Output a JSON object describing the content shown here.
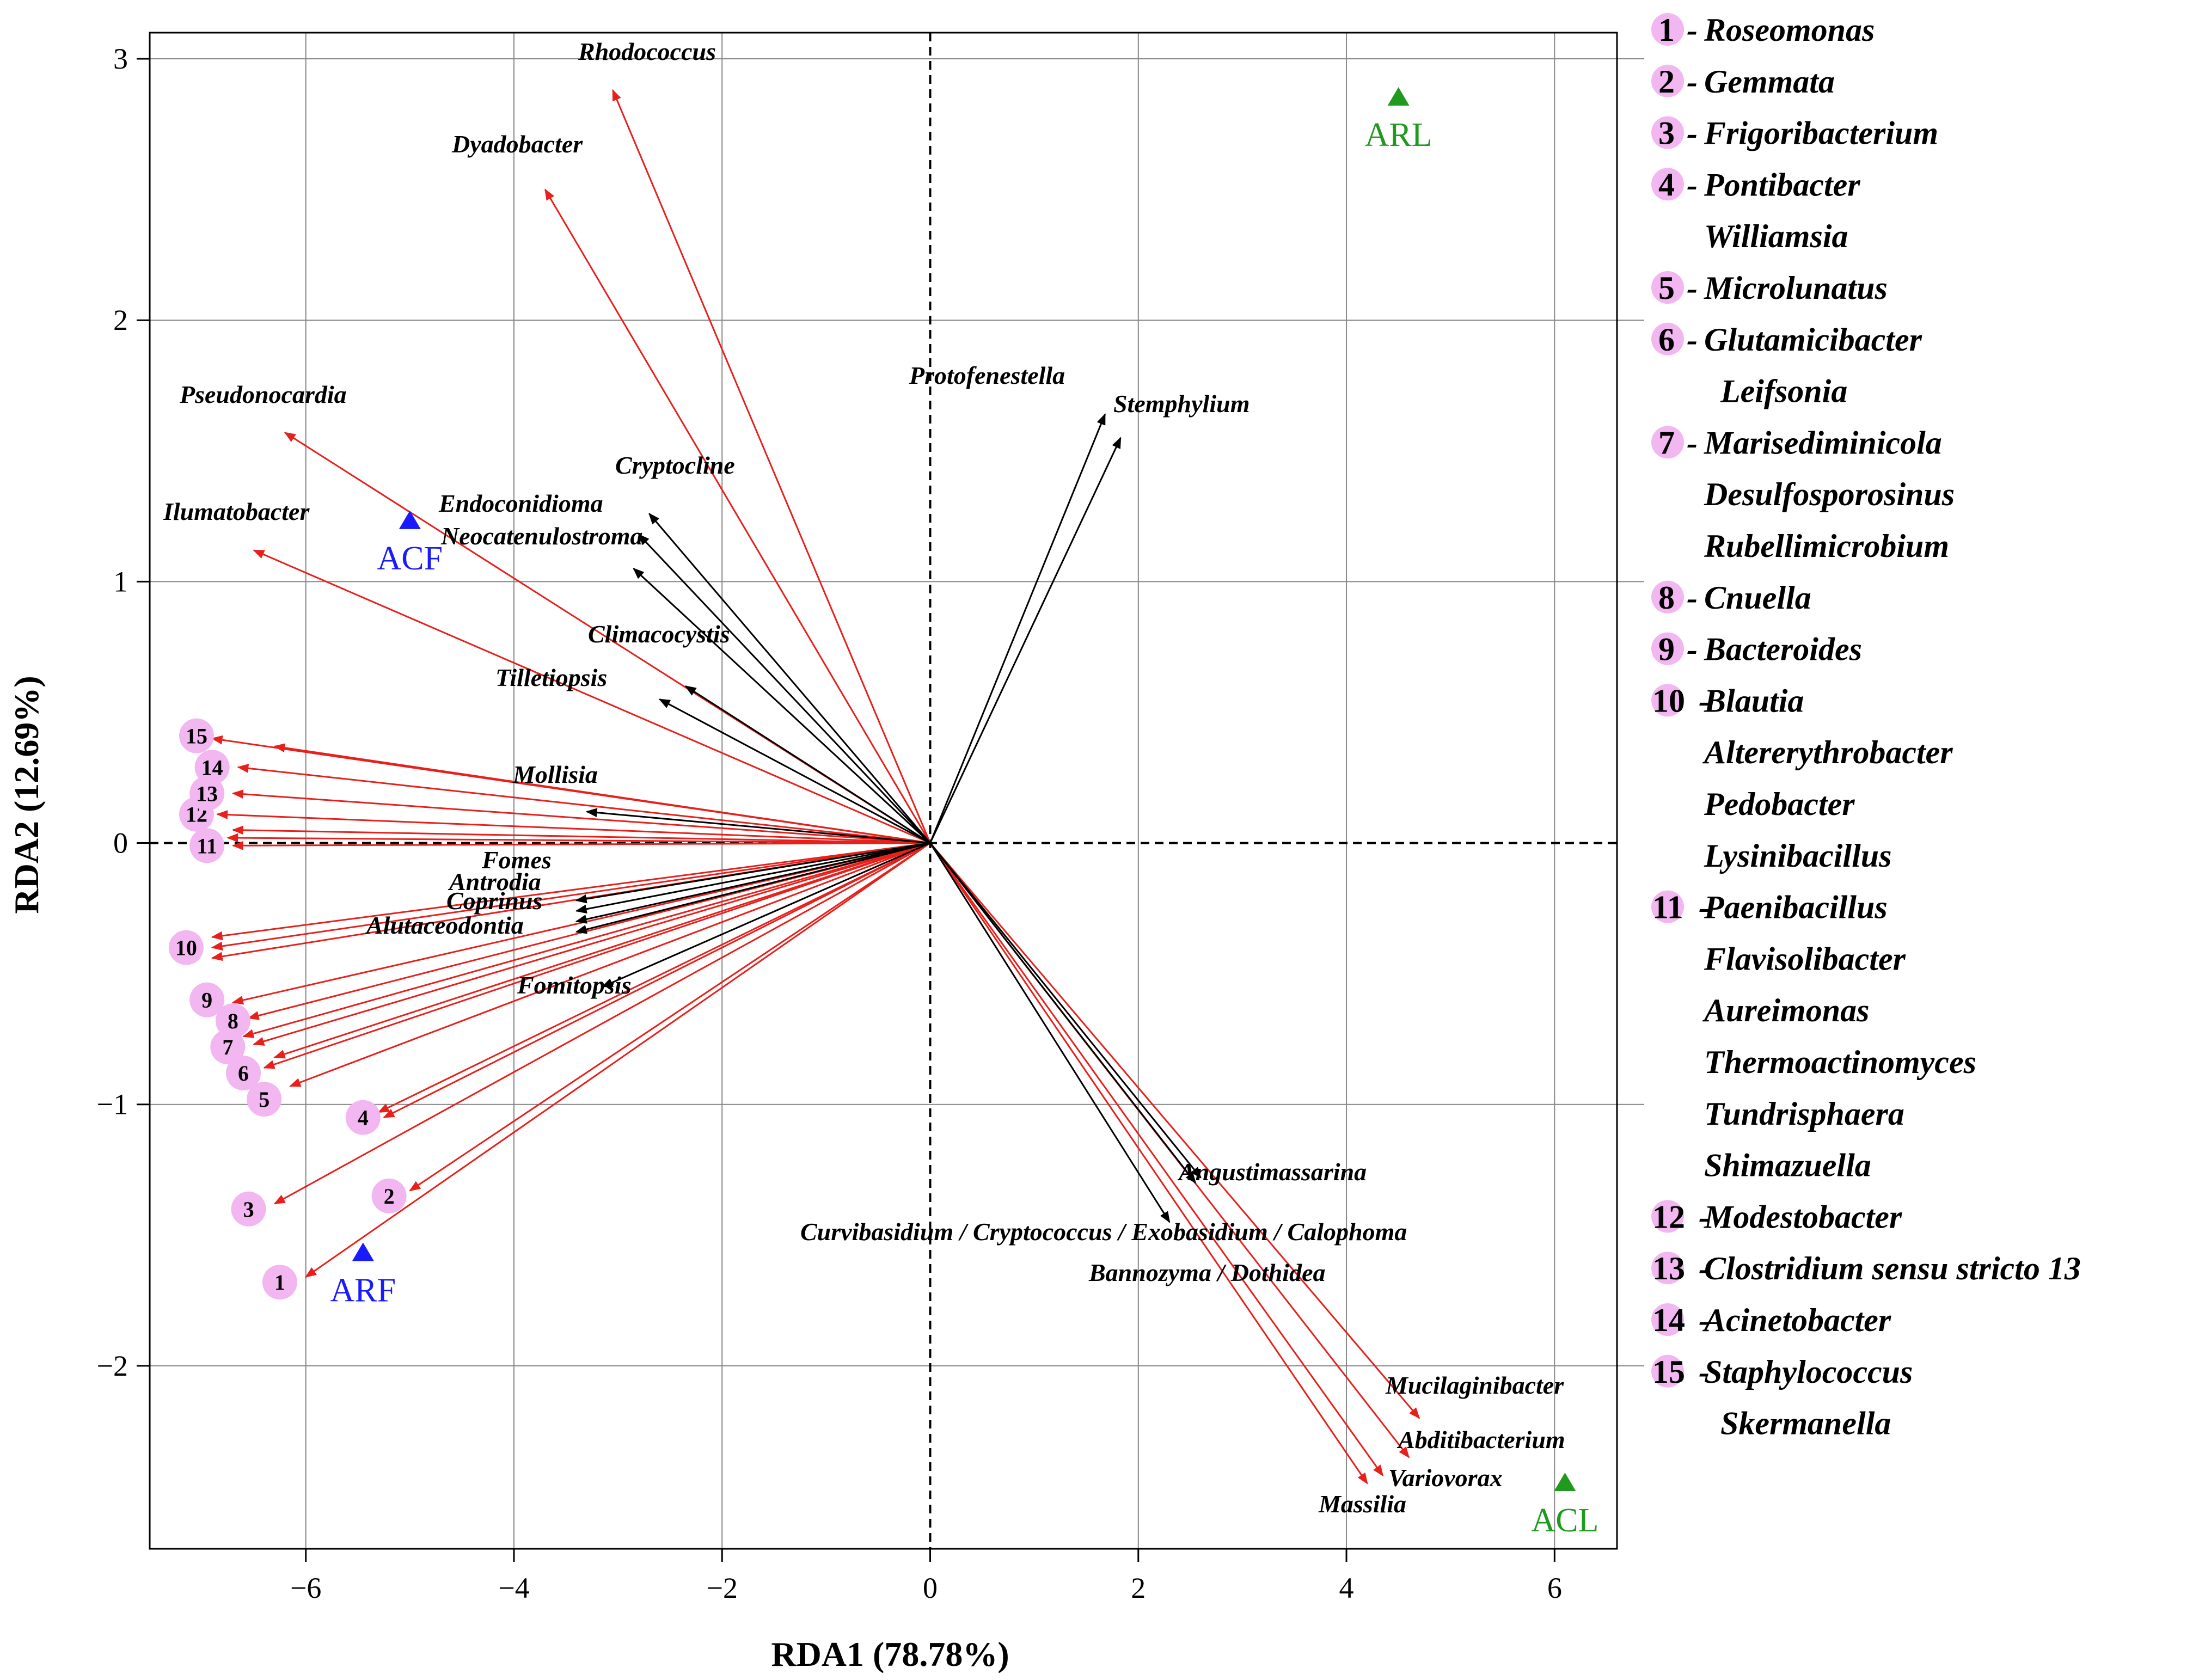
{
  "chart_data": {
    "type": "scatter",
    "title": "",
    "xlabel": "RDA1 (78.78%)",
    "ylabel": "RDA2 (12.69%)",
    "xlim": [
      -7.5,
      6.6
    ],
    "ylim": [
      -2.7,
      3.1
    ],
    "xticks": [
      -6,
      -4,
      -2,
      0,
      2,
      4,
      6
    ],
    "yticks": [
      -2,
      -1,
      0,
      1,
      2,
      3
    ],
    "xtick_labels": [
      "−6",
      "−4",
      "−2",
      "0",
      "2",
      "4",
      "6"
    ],
    "ytick_labels": [
      "−2",
      "−1",
      "0",
      "1",
      "2",
      "3"
    ],
    "colors": {
      "fungi_arrow": "#000000",
      "bacteria_arrow": "#e8201c",
      "site_blue": "#1a1aff",
      "site_green": "#1f9a1f",
      "marker_fill": "#f2b6f0"
    },
    "sites": [
      {
        "name": "ACF",
        "x": -5.0,
        "y": 1.23,
        "color": "#1a1aff"
      },
      {
        "name": "ARF",
        "x": -5.45,
        "y": -1.57,
        "color": "#1a1aff"
      },
      {
        "name": "ARL",
        "x": 4.5,
        "y": 2.85,
        "color": "#1f9a1f"
      },
      {
        "name": "ACL",
        "x": 6.1,
        "y": -2.45,
        "color": "#1f9a1f"
      }
    ],
    "fungi_vectors": [
      {
        "name": "Protofenestella",
        "x": 1.68,
        "y": 1.64
      },
      {
        "name": "Stemphylium",
        "x": 1.83,
        "y": 1.55
      },
      {
        "name": "Cryptocline",
        "x": -2.7,
        "y": 1.26
      },
      {
        "name": "Endoconidioma",
        "x": -2.8,
        "y": 1.18
      },
      {
        "name": "Neocatenulostroma",
        "x": -2.85,
        "y": 1.05
      },
      {
        "name": "Climacocystis",
        "x": -2.35,
        "y": 0.6
      },
      {
        "name": "Tilletiopsis",
        "x": -2.6,
        "y": 0.55
      },
      {
        "name": "Mollisia",
        "x": -3.3,
        "y": 0.12
      },
      {
        "name": "Fomes",
        "x": -3.4,
        "y": -0.22
      },
      {
        "name": "Antrodia",
        "x": -3.4,
        "y": -0.26
      },
      {
        "name": "Coprinus",
        "x": -3.4,
        "y": -0.3
      },
      {
        "name": "Alutaceodontia",
        "x": -3.4,
        "y": -0.34
      },
      {
        "name": "Fomitopsis",
        "x": -3.15,
        "y": -0.55
      },
      {
        "name": "Angustimassarina",
        "x": 2.6,
        "y": -1.28
      },
      {
        "name": "Curvibasidium / Cryptococcus / Exobasidium / Calophoma",
        "x": 2.3,
        "y": -1.45
      },
      {
        "name": "Bannozyma / Dothidea",
        "x": 2.55,
        "y": -1.3
      }
    ],
    "bacteria_vectors": [
      {
        "name": "Rhodococcus",
        "x": -3.05,
        "y": 2.88
      },
      {
        "name": "Dyadobacter",
        "x": -3.7,
        "y": 2.5
      },
      {
        "name": "Pseudonocardia",
        "x": -6.2,
        "y": 1.57
      },
      {
        "name": "Ilumatobacter",
        "x": -6.5,
        "y": 1.12
      },
      {
        "name": "Mucilaginibacter",
        "x": 4.7,
        "y": -2.2
      },
      {
        "name": "Abditibacterium",
        "x": 4.6,
        "y": -2.35
      },
      {
        "name": "Variovorax",
        "x": 4.35,
        "y": -2.42
      },
      {
        "name": "Massilia",
        "x": 4.2,
        "y": -2.45
      }
    ],
    "numbered_points": [
      {
        "id": "1",
        "x": -6.25,
        "y": -1.68
      },
      {
        "id": "2",
        "x": -5.2,
        "y": -1.35
      },
      {
        "id": "3",
        "x": -6.55,
        "y": -1.4
      },
      {
        "id": "4",
        "x": -5.45,
        "y": -1.05
      },
      {
        "id": "5",
        "x": -6.4,
        "y": -0.98
      },
      {
        "id": "6",
        "x": -6.6,
        "y": -0.88
      },
      {
        "id": "7",
        "x": -6.75,
        "y": -0.78
      },
      {
        "id": "8",
        "x": -6.7,
        "y": -0.68
      },
      {
        "id": "9",
        "x": -6.95,
        "y": -0.6
      },
      {
        "id": "10",
        "x": -7.15,
        "y": -0.4
      },
      {
        "id": "11",
        "x": -6.95,
        "y": -0.01
      },
      {
        "id": "12",
        "x": -7.05,
        "y": 0.11
      },
      {
        "id": "13",
        "x": -6.95,
        "y": 0.19
      },
      {
        "id": "14",
        "x": -6.9,
        "y": 0.29
      },
      {
        "id": "15",
        "x": -7.05,
        "y": 0.41
      }
    ],
    "numbered_arrows": [
      {
        "id": "1",
        "x": -6.0,
        "y": -1.66
      },
      {
        "id": "2",
        "x": -5.0,
        "y": -1.33
      },
      {
        "id": "3",
        "x": -6.3,
        "y": -1.38
      },
      {
        "id": "4",
        "x": -5.25,
        "y": -1.05
      },
      {
        "id": "4",
        "x": -5.3,
        "y": -1.03
      },
      {
        "id": "5",
        "x": -6.15,
        "y": -0.93
      },
      {
        "id": "6",
        "x": -6.4,
        "y": -0.86
      },
      {
        "id": "6",
        "x": -6.3,
        "y": -0.82
      },
      {
        "id": "7",
        "x": -6.6,
        "y": -0.74
      },
      {
        "id": "7",
        "x": -6.5,
        "y": -0.77
      },
      {
        "id": "8",
        "x": -6.55,
        "y": -0.67
      },
      {
        "id": "9",
        "x": -6.7,
        "y": -0.61
      },
      {
        "id": "10",
        "x": -6.9,
        "y": -0.44
      },
      {
        "id": "10",
        "x": -6.9,
        "y": -0.4
      },
      {
        "id": "10",
        "x": -6.9,
        "y": -0.36
      },
      {
        "id": "11",
        "x": -6.7,
        "y": 0.05
      },
      {
        "id": "11",
        "x": -6.75,
        "y": 0.02
      },
      {
        "id": "11",
        "x": -6.7,
        "y": -0.01
      },
      {
        "id": "12",
        "x": -6.85,
        "y": 0.11
      },
      {
        "id": "13",
        "x": -6.7,
        "y": 0.19
      },
      {
        "id": "14",
        "x": -6.65,
        "y": 0.29
      },
      {
        "id": "15",
        "x": -6.9,
        "y": 0.4
      },
      {
        "id": "15",
        "x": -6.3,
        "y": 0.37
      }
    ],
    "legend": {
      "placement": "right",
      "entries": [
        {
          "num": "1",
          "names": [
            "Roseomonas"
          ]
        },
        {
          "num": "2",
          "names": [
            "Gemmata"
          ]
        },
        {
          "num": "3",
          "names": [
            "Frigoribacterium"
          ]
        },
        {
          "num": "4",
          "names": [
            "Pontibacter",
            "Williamsia"
          ]
        },
        {
          "num": "5",
          "names": [
            "Microlunatus"
          ]
        },
        {
          "num": "6",
          "names": [
            "Glutamicibacter",
            "Leifsonia"
          ]
        },
        {
          "num": "7",
          "names": [
            "Marisediminicola",
            "Desulfosporosinus",
            "Rubellimicrobium"
          ]
        },
        {
          "num": "8",
          "names": [
            "Cnuella"
          ]
        },
        {
          "num": "9",
          "names": [
            "Bacteroides"
          ]
        },
        {
          "num": "10",
          "names": [
            "Blautia",
            "Altererythrobacter",
            "Pedobacter",
            "Lysinibacillus"
          ]
        },
        {
          "num": "11",
          "names": [
            "Paenibacillus",
            "Flavisolibacter",
            "Aureimonas",
            "Thermoactinomyces",
            "Tundrisphaera",
            "Shimazuella"
          ]
        },
        {
          "num": "12",
          "names": [
            "Modestobacter"
          ]
        },
        {
          "num": "13",
          "names": [
            "Clostridium sensu stricto 13"
          ]
        },
        {
          "num": "14",
          "names": [
            "Acinetobacter"
          ]
        },
        {
          "num": "15",
          "names": [
            "Staphylococcus",
            "Skermanella"
          ]
        }
      ]
    }
  }
}
